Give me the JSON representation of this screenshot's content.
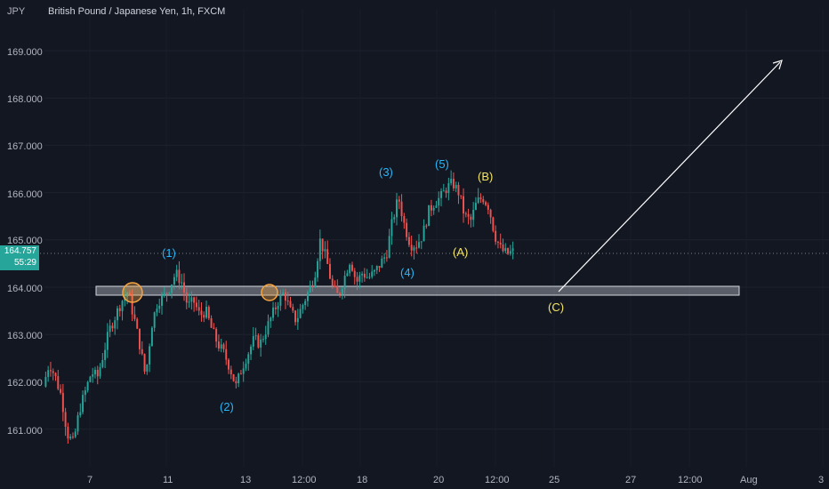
{
  "header": {
    "symbol": "JPY",
    "title": "British Pound / Japanese Yen, 1h, FXCM"
  },
  "price_badge": {
    "price": "164.757",
    "countdown": "55:29"
  },
  "colors": {
    "background": "#131722",
    "up": "#26a69a",
    "down": "#ef5350",
    "wave_blue": "#29b6f6",
    "wave_yellow": "#f5e663",
    "circle": "#f7a440",
    "zone": "#b2b5be"
  },
  "chart_data": {
    "type": "candlestick",
    "y_ticks": [
      "169.000",
      "168.000",
      "167.000",
      "166.000",
      "165.000",
      "164.000",
      "163.000",
      "162.000",
      "161.000"
    ],
    "y_tick_values": [
      169,
      168,
      167,
      166,
      165,
      164,
      163,
      162,
      161
    ],
    "ylim": [
      160.3,
      169.8
    ],
    "x_ticks": [
      "7",
      "11",
      "13",
      "12:00",
      "18",
      "20",
      "12:00",
      "25",
      "27",
      "12:00",
      "Aug",
      "3"
    ],
    "last_price": 164.757,
    "support_zone": [
      163.85,
      164.05
    ],
    "price_path": [
      161.9,
      162.4,
      162.1,
      161.7,
      160.9,
      160.7,
      161.4,
      161.8,
      162.2,
      162.1,
      162.6,
      163.1,
      163.4,
      163.7,
      163.9,
      163.4,
      162.8,
      162.1,
      163.2,
      163.7,
      163.8,
      164.0,
      164.3,
      164.1,
      163.6,
      163.7,
      163.4,
      163.5,
      163.1,
      162.8,
      162.6,
      162.3,
      161.9,
      162.3,
      162.6,
      162.9,
      162.8,
      163.1,
      163.4,
      163.7,
      163.9,
      163.5,
      163.3,
      163.6,
      163.9,
      164.2,
      165.0,
      164.6,
      164.0,
      163.8,
      164.2,
      164.6,
      164.1,
      164.3,
      164.2,
      164.3,
      164.5,
      164.7,
      165.4,
      165.9,
      165.3,
      164.9,
      164.9,
      165.1,
      165.6,
      165.8,
      165.9,
      166.1,
      166.2,
      166.0,
      165.5,
      165.4,
      165.8,
      165.9,
      165.7,
      165.1,
      164.8,
      164.7,
      164.75
    ],
    "wave_labels": [
      {
        "text": "(1)",
        "price": 164.75,
        "color": "blue"
      },
      {
        "text": "(2)",
        "price": 161.4,
        "color": "blue"
      },
      {
        "text": "(3)",
        "price": 166.4,
        "color": "blue"
      },
      {
        "text": "(4)",
        "price": 164.3,
        "color": "blue"
      },
      {
        "text": "(5)",
        "price": 166.6,
        "color": "blue"
      },
      {
        "text": "(A)",
        "price": 164.8,
        "color": "yellow"
      },
      {
        "text": "(B)",
        "price": 166.3,
        "color": "yellow"
      },
      {
        "text": "(C)",
        "price": 163.4,
        "color": "yellow"
      }
    ],
    "arrow": {
      "from_price": 163.9,
      "to_price": 168.8
    }
  }
}
